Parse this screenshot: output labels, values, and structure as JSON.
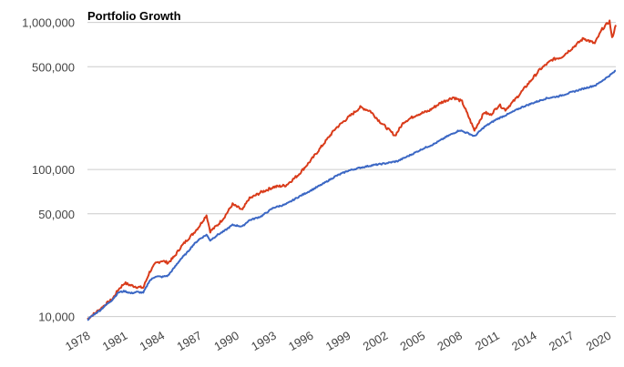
{
  "chart_data": {
    "type": "line",
    "title": "Portfolio Growth",
    "xlabel": "",
    "ylabel": "",
    "y_scale": "log",
    "ylim": [
      9000,
      1100000
    ],
    "xlim": [
      1978.0,
      2020.6
    ],
    "grid": true,
    "legend": "none",
    "y_ticks": [
      {
        "value": 10000,
        "label": "10,000"
      },
      {
        "value": 50000,
        "label": "50,000"
      },
      {
        "value": 100000,
        "label": "100,000"
      },
      {
        "value": 500000,
        "label": "500,000"
      },
      {
        "value": 1000000,
        "label": "1,000,000"
      }
    ],
    "x_ticks": [
      "1978",
      "1981",
      "1984",
      "1987",
      "1990",
      "1993",
      "1996",
      "1999",
      "2002",
      "2005",
      "2008",
      "2011",
      "2014",
      "2017",
      "2020"
    ],
    "series": [
      {
        "color": "#d93b1a",
        "points": [
          [
            1978.0,
            9600
          ],
          [
            1978.5,
            10400
          ],
          [
            1979.0,
            11200
          ],
          [
            1979.5,
            12200
          ],
          [
            1980.0,
            13100
          ],
          [
            1980.5,
            15300
          ],
          [
            1981.0,
            16900
          ],
          [
            1981.5,
            16300
          ],
          [
            1982.0,
            15900
          ],
          [
            1982.5,
            15700
          ],
          [
            1983.0,
            20000
          ],
          [
            1983.5,
            23000
          ],
          [
            1984.0,
            24000
          ],
          [
            1984.5,
            23200
          ],
          [
            1985.0,
            25500
          ],
          [
            1985.5,
            29500
          ],
          [
            1986.0,
            33000
          ],
          [
            1986.5,
            36500
          ],
          [
            1987.0,
            41000
          ],
          [
            1987.6,
            49000
          ],
          [
            1987.9,
            38000
          ],
          [
            1988.5,
            42000
          ],
          [
            1989.0,
            47000
          ],
          [
            1989.7,
            58000
          ],
          [
            1990.5,
            53000
          ],
          [
            1991.0,
            63000
          ],
          [
            1992.0,
            70000
          ],
          [
            1993.0,
            76000
          ],
          [
            1994.0,
            78000
          ],
          [
            1995.0,
            92000
          ],
          [
            1996.0,
            115000
          ],
          [
            1997.0,
            148000
          ],
          [
            1998.0,
            190000
          ],
          [
            1999.0,
            225000
          ],
          [
            2000.0,
            265000
          ],
          [
            2000.8,
            250000
          ],
          [
            2001.5,
            215000
          ],
          [
            2002.8,
            170000
          ],
          [
            2003.5,
            210000
          ],
          [
            2004.5,
            235000
          ],
          [
            2005.5,
            250000
          ],
          [
            2006.5,
            285000
          ],
          [
            2007.5,
            310000
          ],
          [
            2008.2,
            290000
          ],
          [
            2009.2,
            185000
          ],
          [
            2010.0,
            245000
          ],
          [
            2010.5,
            235000
          ],
          [
            2011.2,
            275000
          ],
          [
            2011.7,
            255000
          ],
          [
            2012.5,
            300000
          ],
          [
            2013.5,
            380000
          ],
          [
            2014.5,
            480000
          ],
          [
            2015.5,
            560000
          ],
          [
            2016.2,
            580000
          ],
          [
            2017.0,
            660000
          ],
          [
            2018.0,
            780000
          ],
          [
            2018.9,
            720000
          ],
          [
            2019.5,
            900000
          ],
          [
            2020.1,
            1020000
          ],
          [
            2020.3,
            780000
          ],
          [
            2020.6,
            960000
          ]
        ]
      },
      {
        "color": "#3b67c4",
        "points": [
          [
            1978.0,
            9500
          ],
          [
            1978.5,
            10300
          ],
          [
            1979.0,
            11000
          ],
          [
            1979.5,
            12000
          ],
          [
            1980.0,
            13000
          ],
          [
            1980.5,
            14600
          ],
          [
            1981.0,
            14900
          ],
          [
            1981.5,
            14400
          ],
          [
            1982.0,
            14700
          ],
          [
            1982.5,
            14500
          ],
          [
            1983.0,
            17500
          ],
          [
            1983.5,
            18800
          ],
          [
            1984.0,
            18600
          ],
          [
            1984.5,
            19000
          ],
          [
            1985.0,
            21500
          ],
          [
            1985.5,
            24500
          ],
          [
            1986.0,
            27000
          ],
          [
            1986.5,
            30500
          ],
          [
            1987.0,
            33500
          ],
          [
            1987.6,
            36000
          ],
          [
            1987.9,
            33000
          ],
          [
            1988.5,
            36000
          ],
          [
            1989.0,
            38000
          ],
          [
            1989.7,
            42000
          ],
          [
            1990.5,
            41000
          ],
          [
            1991.0,
            45000
          ],
          [
            1992.0,
            48000
          ],
          [
            1993.0,
            55000
          ],
          [
            1994.0,
            58000
          ],
          [
            1995.0,
            65000
          ],
          [
            1996.0,
            72000
          ],
          [
            1997.0,
            80000
          ],
          [
            1998.0,
            90000
          ],
          [
            1999.0,
            98000
          ],
          [
            2000.0,
            103000
          ],
          [
            2001.0,
            107000
          ],
          [
            2002.0,
            110000
          ],
          [
            2003.0,
            114000
          ],
          [
            2004.0,
            125000
          ],
          [
            2005.0,
            138000
          ],
          [
            2006.0,
            150000
          ],
          [
            2007.0,
            168000
          ],
          [
            2008.0,
            185000
          ],
          [
            2008.8,
            175000
          ],
          [
            2009.2,
            168000
          ],
          [
            2010.0,
            195000
          ],
          [
            2011.0,
            220000
          ],
          [
            2012.0,
            240000
          ],
          [
            2013.0,
            265000
          ],
          [
            2014.0,
            285000
          ],
          [
            2015.0,
            305000
          ],
          [
            2016.0,
            315000
          ],
          [
            2017.0,
            335000
          ],
          [
            2018.0,
            355000
          ],
          [
            2019.0,
            375000
          ],
          [
            2020.0,
            430000
          ],
          [
            2020.6,
            470000
          ]
        ]
      }
    ]
  }
}
